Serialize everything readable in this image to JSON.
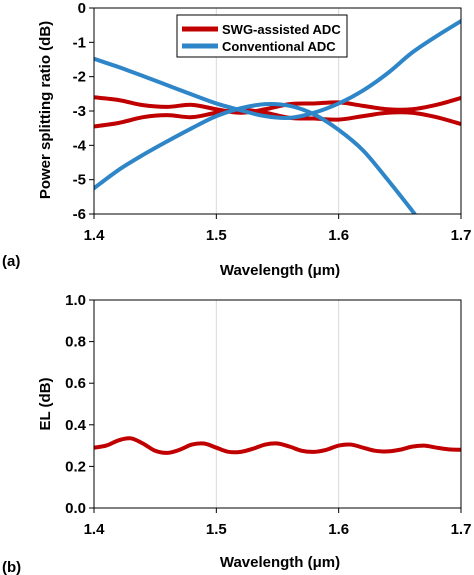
{
  "chart_data": [
    {
      "panel_label": "(a)",
      "type": "line",
      "xlabel": "Wavelength (μm)",
      "ylabel": "Power splitting ratio (dB)",
      "xlim": [
        1.4,
        1.7
      ],
      "ylim": [
        -6,
        0
      ],
      "xticks": [
        1.4,
        1.5,
        1.6,
        1.7
      ],
      "yticks": [
        -6,
        -5,
        -4,
        -3,
        -2,
        -1,
        0
      ],
      "grid": "vertical",
      "legend": {
        "placement": "top-right",
        "entries": [
          {
            "name": "SWG-assisted ADC",
            "color": "#c00000"
          },
          {
            "name": "Conventional ADC",
            "color": "#2e86c8"
          }
        ]
      },
      "series": [
        {
          "name": "SWG-assisted ADC",
          "color": "#c00000",
          "x": [
            1.4,
            1.42,
            1.44,
            1.46,
            1.48,
            1.5,
            1.52,
            1.54,
            1.56,
            1.58,
            1.6,
            1.62,
            1.64,
            1.66,
            1.68,
            1.7
          ],
          "y": [
            -2.6,
            -2.68,
            -2.83,
            -2.88,
            -2.82,
            -2.95,
            -3.05,
            -2.95,
            -2.8,
            -2.78,
            -2.75,
            -2.85,
            -2.95,
            -2.95,
            -2.82,
            -2.62
          ]
        },
        {
          "name": "SWG-assisted ADC",
          "color": "#c00000",
          "x": [
            1.4,
            1.42,
            1.44,
            1.46,
            1.48,
            1.5,
            1.52,
            1.54,
            1.56,
            1.58,
            1.6,
            1.62,
            1.64,
            1.66,
            1.68,
            1.7
          ],
          "y": [
            -3.45,
            -3.35,
            -3.18,
            -3.12,
            -3.18,
            -3.05,
            -2.96,
            -3.05,
            -3.2,
            -3.22,
            -3.25,
            -3.15,
            -3.05,
            -3.05,
            -3.18,
            -3.38
          ]
        },
        {
          "name": "Conventional ADC",
          "color": "#2e86c8",
          "x": [
            1.4,
            1.42,
            1.44,
            1.46,
            1.48,
            1.5,
            1.52,
            1.54,
            1.56,
            1.58,
            1.6,
            1.62,
            1.64,
            1.66,
            1.68,
            1.7
          ],
          "y": [
            -1.48,
            -1.72,
            -1.98,
            -2.25,
            -2.52,
            -2.78,
            -2.98,
            -3.15,
            -3.2,
            -3.05,
            -2.78,
            -2.4,
            -1.9,
            -1.3,
            -0.82,
            -0.38
          ]
        },
        {
          "name": "Conventional ADC",
          "color": "#2e86c8",
          "x": [
            1.4,
            1.42,
            1.44,
            1.46,
            1.48,
            1.5,
            1.52,
            1.54,
            1.56,
            1.58,
            1.6,
            1.62,
            1.64,
            1.66,
            1.662
          ],
          "y": [
            -5.25,
            -4.72,
            -4.28,
            -3.88,
            -3.5,
            -3.15,
            -2.92,
            -2.8,
            -2.85,
            -3.1,
            -3.55,
            -4.15,
            -5.0,
            -5.9,
            -6.0
          ]
        }
      ]
    },
    {
      "panel_label": "(b)",
      "type": "line",
      "xlabel": "Wavelength (μm)",
      "ylabel": "EL (dB)",
      "xlim": [
        1.4,
        1.7
      ],
      "ylim": [
        0,
        1.0
      ],
      "xticks": [
        1.4,
        1.5,
        1.6,
        1.7
      ],
      "yticks": [
        0.0,
        0.2,
        0.4,
        0.6,
        0.8,
        1.0
      ],
      "ytick_labels": [
        "0.0",
        "0.2",
        "0.4",
        "0.6",
        "0.8",
        "1.0"
      ],
      "grid": "vertical",
      "series": [
        {
          "color": "#c00000",
          "x": [
            1.4,
            1.41,
            1.42,
            1.43,
            1.44,
            1.45,
            1.46,
            1.47,
            1.48,
            1.49,
            1.5,
            1.51,
            1.52,
            1.53,
            1.54,
            1.55,
            1.56,
            1.57,
            1.58,
            1.59,
            1.6,
            1.61,
            1.62,
            1.63,
            1.64,
            1.65,
            1.66,
            1.67,
            1.68,
            1.69,
            1.7
          ],
          "y": [
            0.29,
            0.3,
            0.325,
            0.335,
            0.31,
            0.275,
            0.265,
            0.28,
            0.305,
            0.31,
            0.29,
            0.27,
            0.27,
            0.285,
            0.305,
            0.31,
            0.295,
            0.275,
            0.27,
            0.28,
            0.3,
            0.305,
            0.29,
            0.275,
            0.272,
            0.28,
            0.295,
            0.3,
            0.29,
            0.282,
            0.28
          ]
        }
      ]
    }
  ],
  "colors": {
    "swg": "#c00000",
    "conventional": "#2e86c8",
    "grid": "#d9d9d9"
  }
}
